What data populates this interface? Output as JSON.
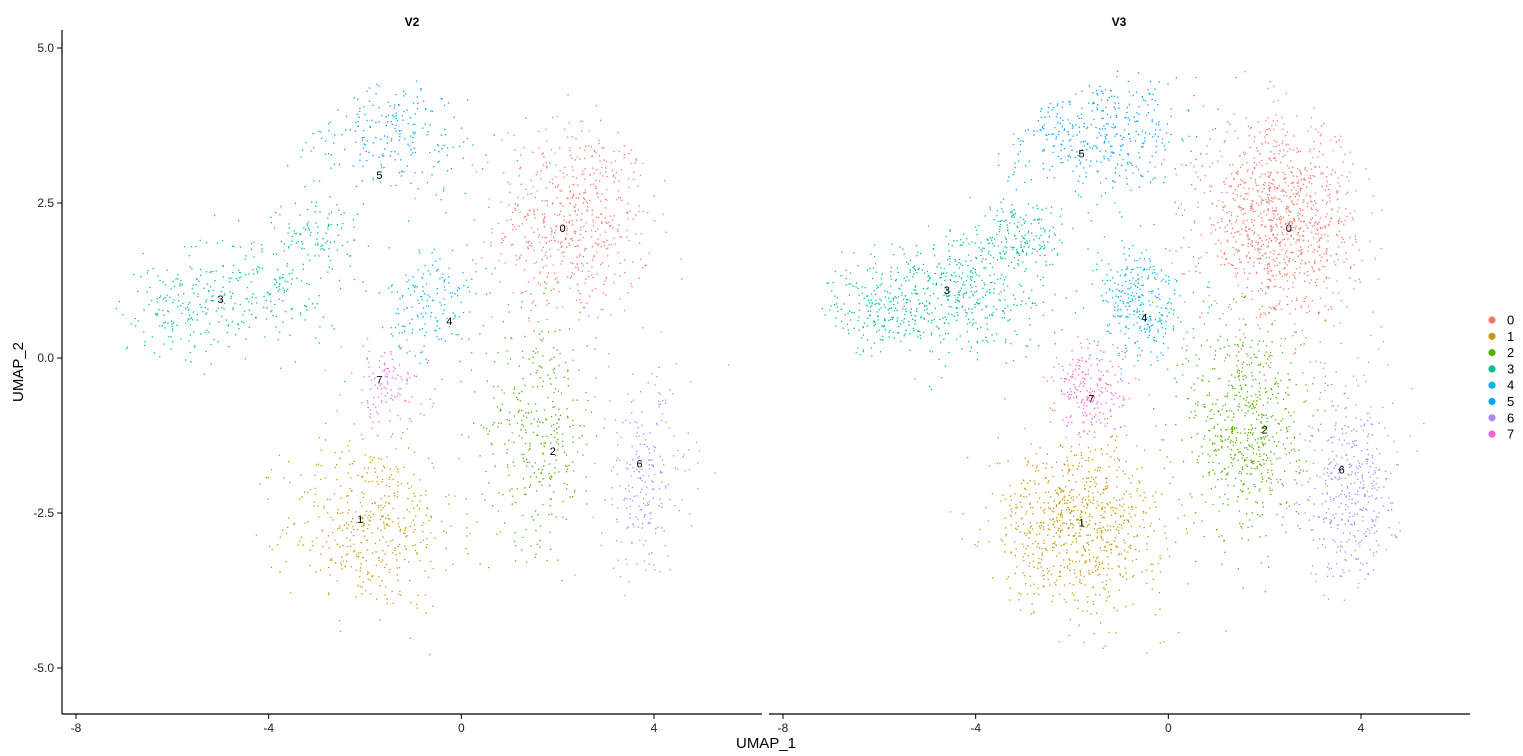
{
  "chart_data": {
    "type": "scatter",
    "xlabel": "UMAP_1",
    "ylabel": "UMAP_2",
    "xlim": [
      -8.2,
      6.3
    ],
    "ylim": [
      -5.6,
      5.4
    ],
    "xticks": [
      -8,
      -4,
      0,
      4
    ],
    "xtick_labels": [
      "-8",
      "-4",
      "0",
      "4"
    ],
    "yticks": [
      5.0,
      2.5,
      0.0,
      -2.5,
      -5.0
    ],
    "ytick_labels": [
      "5.0",
      "2.5",
      "0.0",
      "-2.5",
      "-5.0"
    ],
    "grid": false,
    "legend_position": "right",
    "clusters": [
      {
        "name": "0",
        "color": "#F8766D"
      },
      {
        "name": "1",
        "color": "#C49A00"
      },
      {
        "name": "2",
        "color": "#53B400"
      },
      {
        "name": "3",
        "color": "#00C094"
      },
      {
        "name": "4",
        "color": "#00B6EB"
      },
      {
        "name": "5",
        "color": "#06A4FF"
      },
      {
        "name": "6",
        "color": "#A58AFF"
      },
      {
        "name": "7",
        "color": "#FB61D7"
      }
    ],
    "panels": [
      {
        "title": "V2",
        "point_density": 0.55,
        "cluster_labels": [
          {
            "label": "0",
            "x": 2.1,
            "y": 2.1
          },
          {
            "label": "1",
            "x": -2.1,
            "y": -2.6
          },
          {
            "label": "2",
            "x": 1.9,
            "y": -1.5
          },
          {
            "label": "3",
            "x": -5.0,
            "y": 0.95
          },
          {
            "label": "4",
            "x": -0.25,
            "y": 0.6
          },
          {
            "label": "5",
            "x": -1.7,
            "y": 2.95
          },
          {
            "label": "6",
            "x": 3.7,
            "y": -1.7
          },
          {
            "label": "7",
            "x": -1.7,
            "y": -0.35
          }
        ]
      },
      {
        "title": "V3",
        "point_density": 1.0,
        "cluster_labels": [
          {
            "label": "0",
            "x": 2.5,
            "y": 2.1
          },
          {
            "label": "1",
            "x": -1.8,
            "y": -2.65
          },
          {
            "label": "2",
            "x": 2.0,
            "y": -1.15
          },
          {
            "label": "3",
            "x": -4.6,
            "y": 1.1
          },
          {
            "label": "4",
            "x": -0.5,
            "y": 0.65
          },
          {
            "label": "5",
            "x": -1.8,
            "y": 3.3
          },
          {
            "label": "6",
            "x": 3.6,
            "y": -1.8
          },
          {
            "label": "7",
            "x": -1.6,
            "y": -0.65
          }
        ]
      }
    ]
  }
}
